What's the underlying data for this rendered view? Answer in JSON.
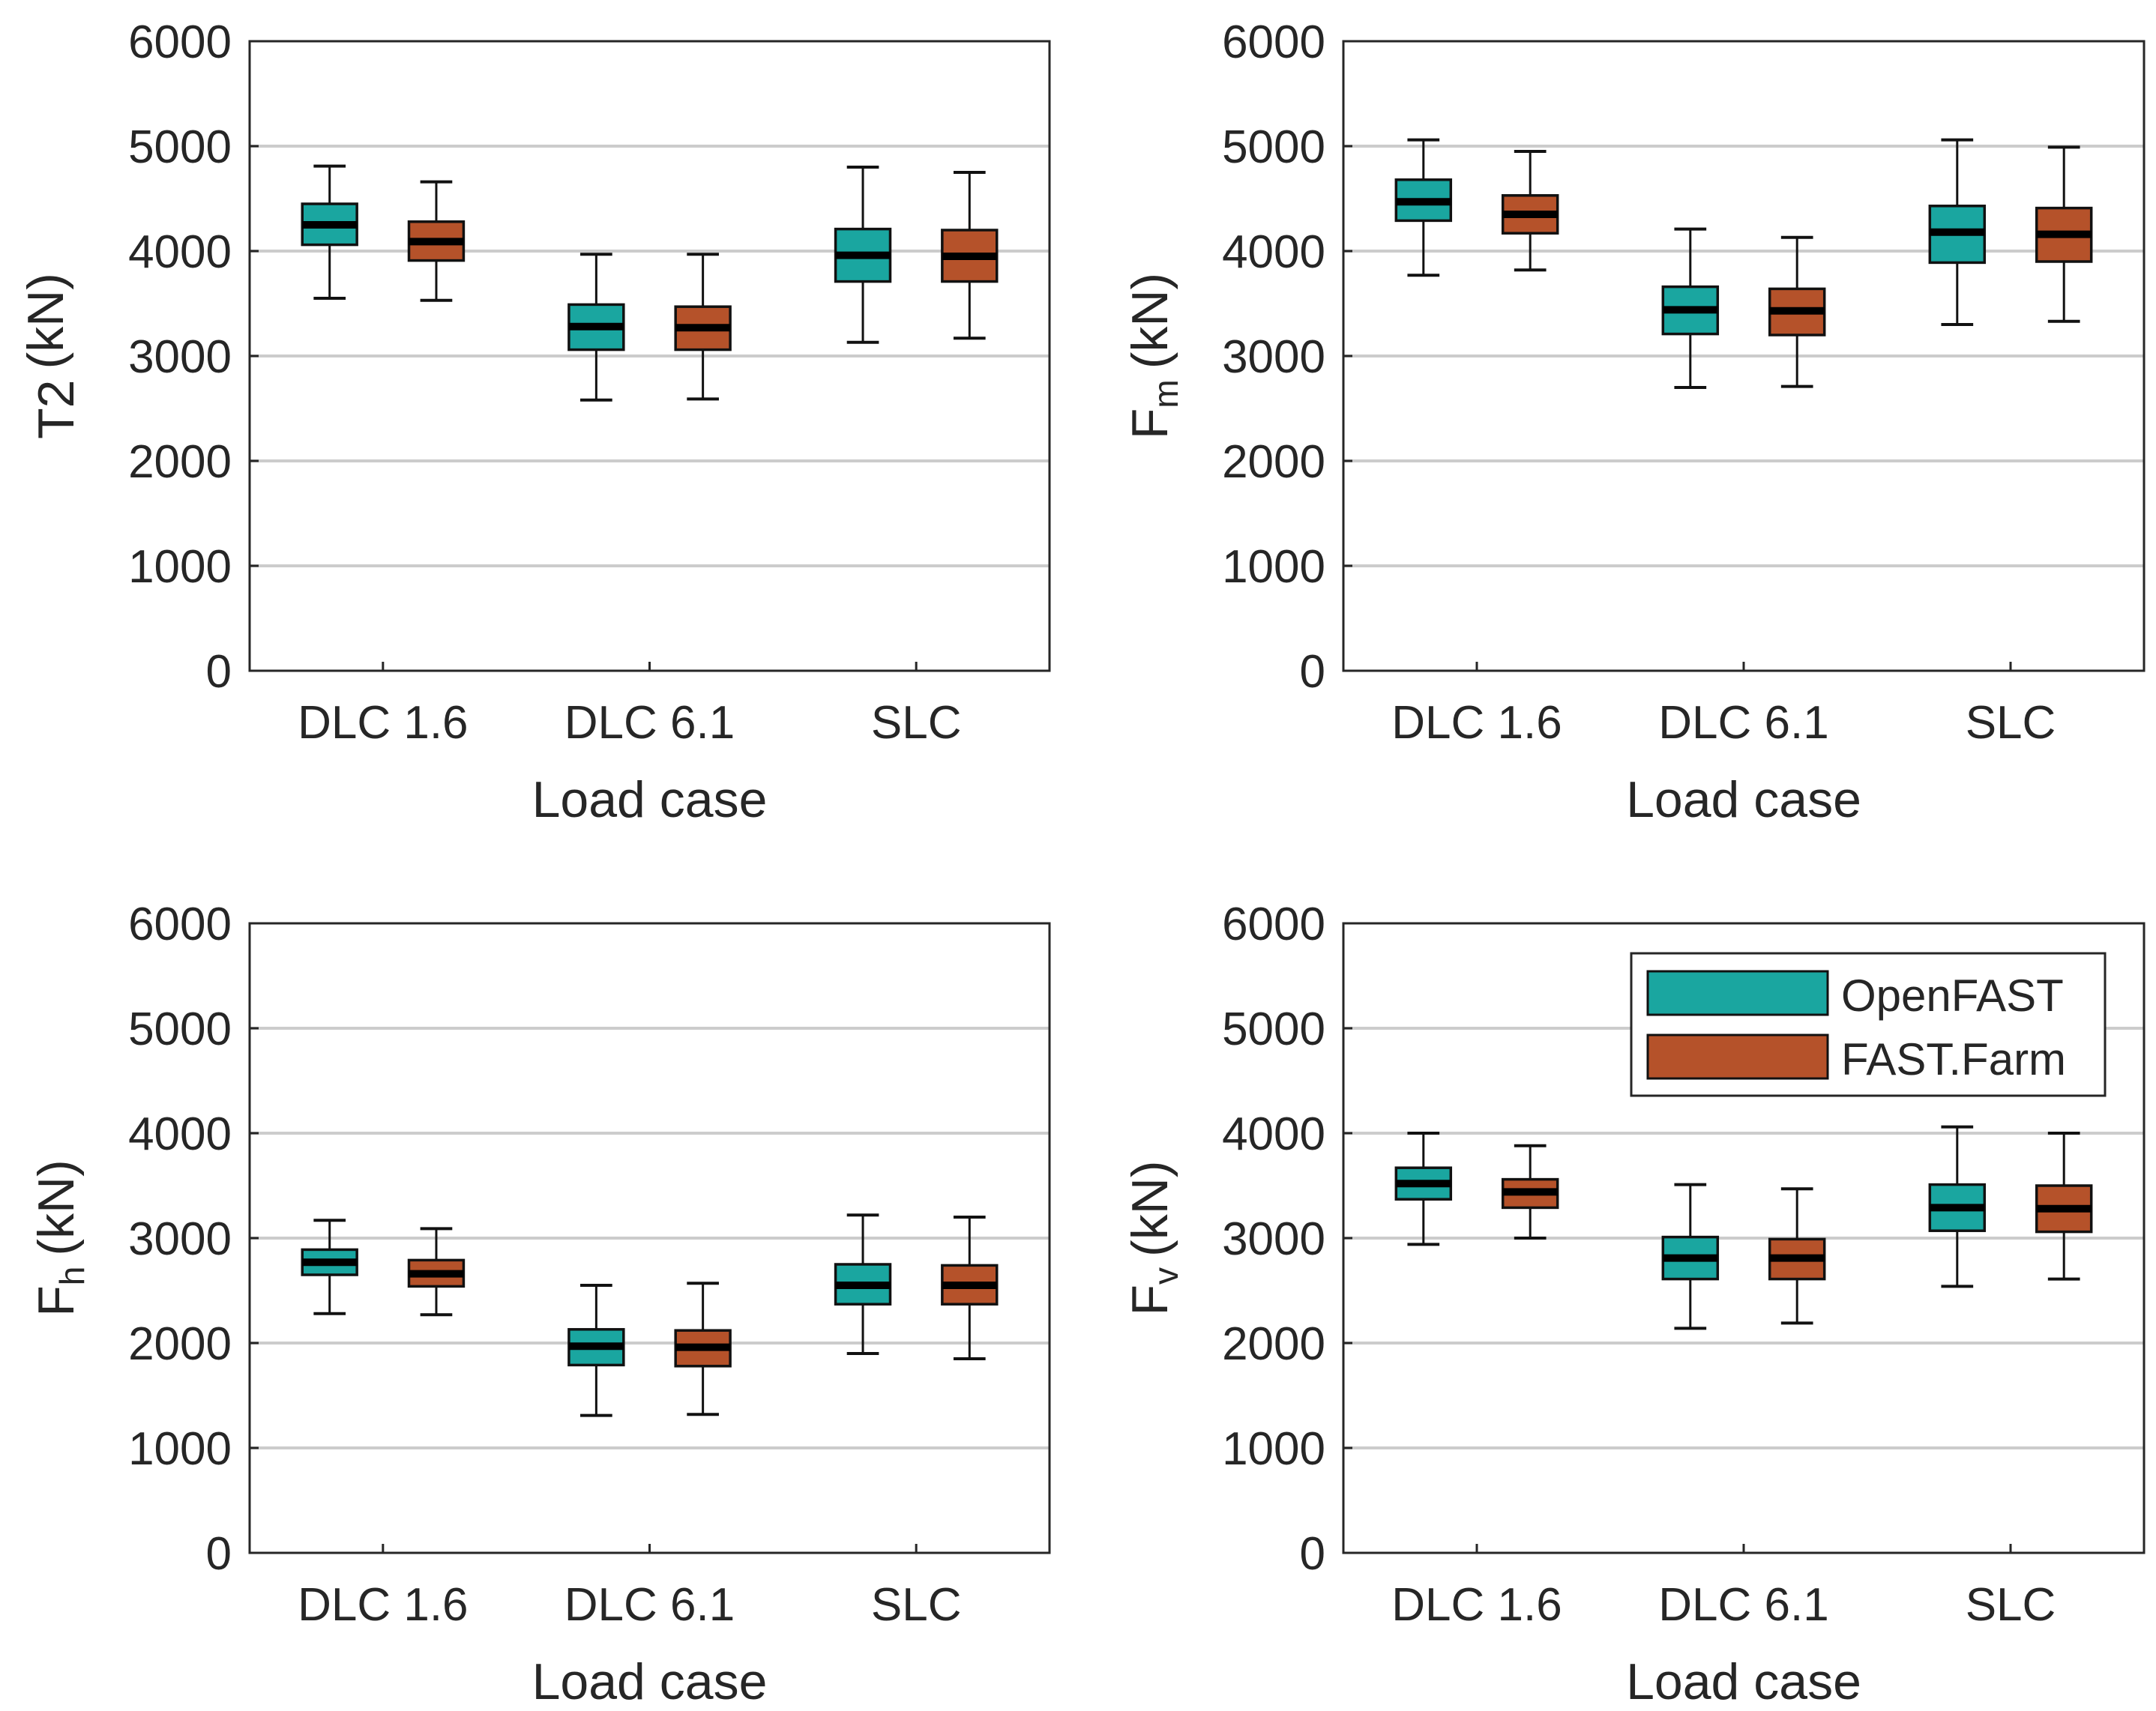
{
  "colors": {
    "openfast": "#1aa6a0",
    "fastfarm": "#b5522a",
    "grid": "#cccccc",
    "axis": "#262626"
  },
  "legend": {
    "entries": [
      "OpenFAST",
      "FAST.Farm"
    ]
  },
  "chart_data": [
    {
      "type": "box",
      "ylabel": "T2 (kN)",
      "ylabel_main": "T2",
      "ylabel_sub": "",
      "ylabel_unit": "(kN)",
      "xlabel": "Load case",
      "categories": [
        "DLC 1.6",
        "DLC 6.1",
        "SLC"
      ],
      "ylim": [
        0,
        6000
      ],
      "yticks": [
        "0",
        "1000",
        "2000",
        "3000",
        "4000",
        "5000",
        "6000"
      ],
      "grid": true,
      "series": [
        {
          "name": "OpenFAST",
          "boxes": [
            {
              "min": 3550,
              "q1": 4060,
              "median": 4250,
              "q3": 4450,
              "max": 4810
            },
            {
              "min": 2580,
              "q1": 3060,
              "median": 3280,
              "q3": 3490,
              "max": 3970
            },
            {
              "min": 3130,
              "q1": 3710,
              "median": 3960,
              "q3": 4210,
              "max": 4800
            }
          ]
        },
        {
          "name": "FAST.Farm",
          "boxes": [
            {
              "min": 3530,
              "q1": 3910,
              "median": 4090,
              "q3": 4280,
              "max": 4660
            },
            {
              "min": 2590,
              "q1": 3060,
              "median": 3270,
              "q3": 3470,
              "max": 3970
            },
            {
              "min": 3170,
              "q1": 3710,
              "median": 3950,
              "q3": 4200,
              "max": 4750
            }
          ]
        }
      ]
    },
    {
      "type": "box",
      "ylabel": "Fm (kN)",
      "ylabel_main": "F",
      "ylabel_sub": "m",
      "ylabel_unit": "(kN)",
      "xlabel": "Load case",
      "categories": [
        "DLC 1.6",
        "DLC 6.1",
        "SLC"
      ],
      "ylim": [
        0,
        6000
      ],
      "yticks": [
        "0",
        "1000",
        "2000",
        "3000",
        "4000",
        "5000",
        "6000"
      ],
      "grid": true,
      "series": [
        {
          "name": "OpenFAST",
          "boxes": [
            {
              "min": 3770,
              "q1": 4290,
              "median": 4470,
              "q3": 4680,
              "max": 5060
            },
            {
              "min": 2700,
              "q1": 3210,
              "median": 3440,
              "q3": 3660,
              "max": 4210
            },
            {
              "min": 3300,
              "q1": 3890,
              "median": 4180,
              "q3": 4430,
              "max": 5060
            }
          ]
        },
        {
          "name": "FAST.Farm",
          "boxes": [
            {
              "min": 3820,
              "q1": 4170,
              "median": 4350,
              "q3": 4530,
              "max": 4950
            },
            {
              "min": 2710,
              "q1": 3200,
              "median": 3430,
              "q3": 3640,
              "max": 4130
            },
            {
              "min": 3330,
              "q1": 3900,
              "median": 4160,
              "q3": 4410,
              "max": 4990
            }
          ]
        }
      ]
    },
    {
      "type": "box",
      "ylabel": "Fh (kN)",
      "ylabel_main": "F",
      "ylabel_sub": "h",
      "ylabel_unit": "(kN)",
      "xlabel": "Load case",
      "categories": [
        "DLC 1.6",
        "DLC 6.1",
        "SLC"
      ],
      "ylim": [
        0,
        6000
      ],
      "yticks": [
        "0",
        "1000",
        "2000",
        "3000",
        "4000",
        "5000",
        "6000"
      ],
      "grid": true,
      "series": [
        {
          "name": "OpenFAST",
          "boxes": [
            {
              "min": 2280,
              "q1": 2650,
              "median": 2770,
              "q3": 2890,
              "max": 3170
            },
            {
              "min": 1310,
              "q1": 1790,
              "median": 1970,
              "q3": 2130,
              "max": 2550
            },
            {
              "min": 1900,
              "q1": 2370,
              "median": 2550,
              "q3": 2750,
              "max": 3220
            }
          ]
        },
        {
          "name": "FAST.Farm",
          "boxes": [
            {
              "min": 2270,
              "q1": 2540,
              "median": 2660,
              "q3": 2790,
              "max": 3090
            },
            {
              "min": 1320,
              "q1": 1780,
              "median": 1960,
              "q3": 2120,
              "max": 2570
            },
            {
              "min": 1850,
              "q1": 2370,
              "median": 2550,
              "q3": 2740,
              "max": 3200
            }
          ]
        }
      ]
    },
    {
      "type": "box",
      "ylabel": "Fv (kN)",
      "ylabel_main": "F",
      "ylabel_sub": "v",
      "ylabel_unit": "(kN)",
      "xlabel": "Load case",
      "categories": [
        "DLC 1.6",
        "DLC 6.1",
        "SLC"
      ],
      "ylim": [
        0,
        6000
      ],
      "yticks": [
        "0",
        "1000",
        "2000",
        "3000",
        "4000",
        "5000",
        "6000"
      ],
      "grid": true,
      "legend_location": "top-right",
      "series": [
        {
          "name": "OpenFAST",
          "boxes": [
            {
              "min": 2940,
              "q1": 3370,
              "median": 3520,
              "q3": 3670,
              "max": 4000
            },
            {
              "min": 2140,
              "q1": 2610,
              "median": 2810,
              "q3": 3010,
              "max": 3510
            },
            {
              "min": 2540,
              "q1": 3070,
              "median": 3290,
              "q3": 3510,
              "max": 4060
            }
          ]
        },
        {
          "name": "FAST.Farm",
          "boxes": [
            {
              "min": 3000,
              "q1": 3290,
              "median": 3440,
              "q3": 3560,
              "max": 3880
            },
            {
              "min": 2190,
              "q1": 2610,
              "median": 2810,
              "q3": 2990,
              "max": 3470
            },
            {
              "min": 2610,
              "q1": 3060,
              "median": 3280,
              "q3": 3500,
              "max": 4000
            }
          ]
        }
      ]
    }
  ]
}
